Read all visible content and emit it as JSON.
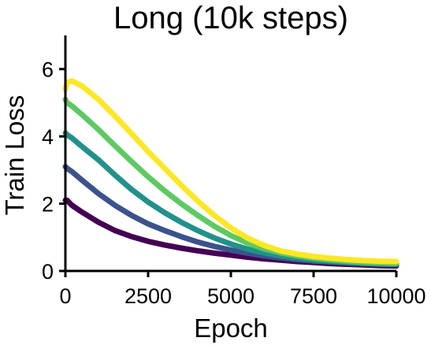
{
  "chart_data": {
    "type": "line",
    "title": "Long (10k steps)",
    "xlabel": "Epoch",
    "ylabel": "Train Loss",
    "xlim": [
      0,
      10000
    ],
    "ylim": [
      0,
      7
    ],
    "xticks": [
      0,
      2500,
      5000,
      7500,
      10000
    ],
    "yticks": [
      0,
      2,
      4,
      6
    ],
    "grid": false,
    "series": [
      {
        "color": "#440154",
        "x": [
          0,
          50,
          200,
          500,
          1000,
          1500,
          2000,
          2500,
          3000,
          3500,
          4000,
          4500,
          5000,
          5500,
          6000,
          6500,
          7000,
          7500,
          8000,
          8500,
          9000,
          9500,
          10000
        ],
        "y": [
          2.1,
          2.1,
          1.95,
          1.75,
          1.45,
          1.2,
          1.02,
          0.88,
          0.77,
          0.68,
          0.6,
          0.53,
          0.47,
          0.41,
          0.36,
          0.32,
          0.28,
          0.25,
          0.22,
          0.2,
          0.18,
          0.16,
          0.15
        ]
      },
      {
        "color": "#3b528b",
        "x": [
          0,
          50,
          200,
          500,
          1000,
          1500,
          2000,
          2500,
          3000,
          3500,
          4000,
          4500,
          5000,
          5500,
          6000,
          6500,
          7000,
          7500,
          8000,
          8500,
          9000,
          9500,
          10000
        ],
        "y": [
          3.1,
          3.05,
          2.95,
          2.7,
          2.3,
          1.95,
          1.65,
          1.4,
          1.2,
          1.02,
          0.86,
          0.73,
          0.62,
          0.53,
          0.45,
          0.39,
          0.34,
          0.3,
          0.27,
          0.24,
          0.22,
          0.2,
          0.19
        ]
      },
      {
        "color": "#21918c",
        "x": [
          0,
          50,
          200,
          500,
          1000,
          1500,
          2000,
          2500,
          3000,
          3500,
          4000,
          4500,
          5000,
          5500,
          6000,
          6500,
          7000,
          7500,
          8000,
          8500,
          9000,
          9500,
          10000
        ],
        "y": [
          4.1,
          4.05,
          3.95,
          3.7,
          3.3,
          2.85,
          2.42,
          2.05,
          1.73,
          1.45,
          1.2,
          0.98,
          0.8,
          0.65,
          0.54,
          0.45,
          0.38,
          0.33,
          0.29,
          0.26,
          0.23,
          0.21,
          0.2
        ]
      },
      {
        "color": "#5ec962",
        "x": [
          0,
          50,
          200,
          500,
          1000,
          1500,
          2000,
          2500,
          3000,
          3500,
          4000,
          4500,
          5000,
          5500,
          6000,
          6500,
          7000,
          7500,
          8000,
          8500,
          9000,
          9500,
          10000
        ],
        "y": [
          5.1,
          5.0,
          4.9,
          4.65,
          4.2,
          3.72,
          3.25,
          2.8,
          2.38,
          2.0,
          1.65,
          1.33,
          1.05,
          0.83,
          0.66,
          0.54,
          0.45,
          0.38,
          0.33,
          0.29,
          0.26,
          0.24,
          0.23
        ]
      },
      {
        "color": "#fde725",
        "x": [
          0,
          50,
          200,
          500,
          1000,
          1500,
          2000,
          2500,
          3000,
          3500,
          4000,
          4500,
          5000,
          5500,
          6000,
          6500,
          7000,
          7500,
          8000,
          8500,
          9000,
          9500,
          10000
        ],
        "y": [
          5.4,
          5.6,
          5.65,
          5.5,
          5.1,
          4.6,
          4.08,
          3.55,
          3.05,
          2.55,
          2.08,
          1.65,
          1.28,
          0.98,
          0.76,
          0.6,
          0.5,
          0.43,
          0.38,
          0.34,
          0.31,
          0.29,
          0.28
        ]
      }
    ]
  }
}
